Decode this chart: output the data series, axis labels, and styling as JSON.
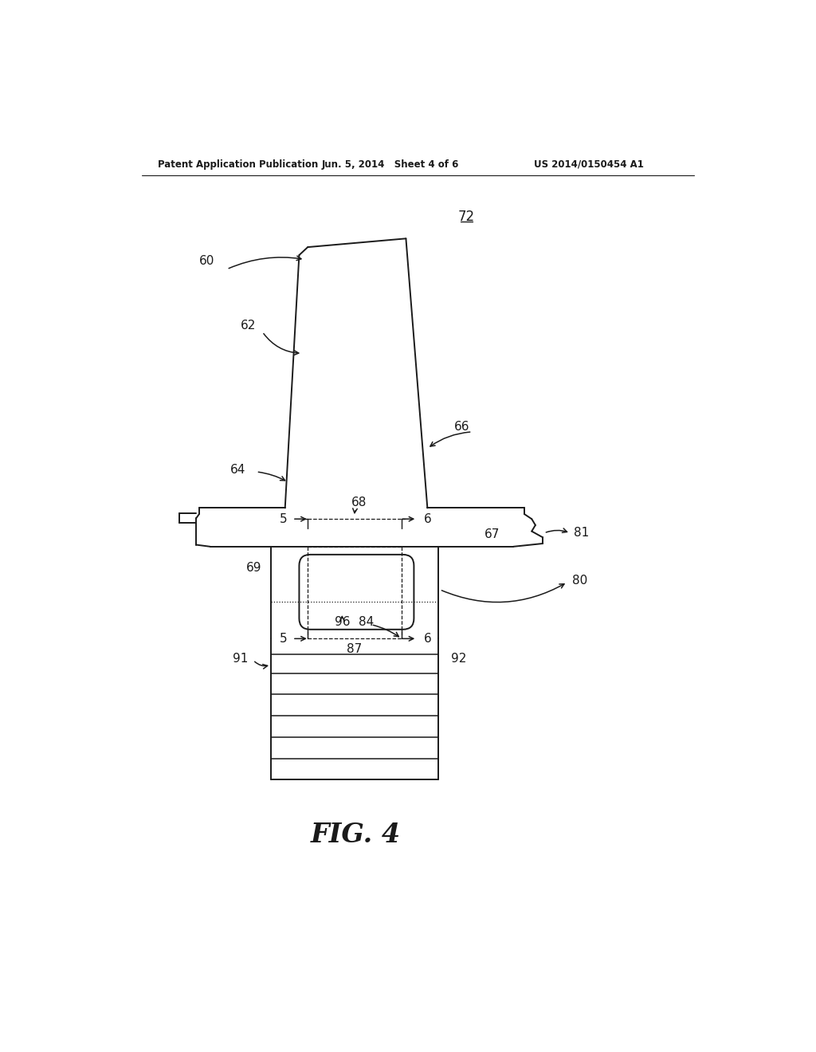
{
  "bg_color": "#ffffff",
  "line_color": "#1a1a1a",
  "header_left": "Patent Application Publication",
  "header_mid": "Jun. 5, 2014   Sheet 4 of 6",
  "header_right": "US 2014/0150454 A1",
  "figure_label": "FIG. 4",
  "ref_72": "72",
  "ref_60": "60",
  "ref_62": "62",
  "ref_64": "64",
  "ref_66": "66",
  "ref_67": "67",
  "ref_68": "68",
  "ref_69": "69",
  "ref_80": "80",
  "ref_81": "81",
  "ref_84": "84",
  "ref_87": "87",
  "ref_91": "91",
  "ref_92": "92",
  "ref_96": "96",
  "ref_5a": "5",
  "ref_5b": "5",
  "ref_6a": "6",
  "ref_6b": "6"
}
